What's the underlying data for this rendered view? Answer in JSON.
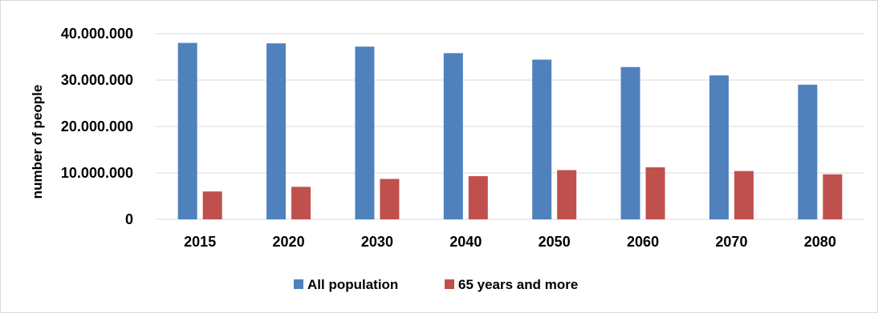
{
  "chart_data": {
    "type": "bar",
    "title": "",
    "xlabel": "",
    "ylabel": "number of people",
    "categories": [
      "2015",
      "2020",
      "2030",
      "2040",
      "2050",
      "2060",
      "2070",
      "2080"
    ],
    "series": [
      {
        "name": "All population",
        "color": "#4f81bd",
        "values": [
          38000000,
          37900000,
          37200000,
          35800000,
          34400000,
          32800000,
          31000000,
          29000000
        ]
      },
      {
        "name": "65 years and more",
        "color": "#c0504d",
        "values": [
          6000000,
          7000000,
          8700000,
          9300000,
          10600000,
          11200000,
          10400000,
          9700000
        ]
      }
    ],
    "ylim": [
      0,
      40000000
    ],
    "yticks": [
      0,
      10000000,
      20000000,
      30000000,
      40000000
    ],
    "ytick_labels": [
      "0",
      "10.000.000",
      "20.000.000",
      "30.000.000",
      "40.000.000"
    ],
    "grid": true,
    "legend": "bottom"
  }
}
